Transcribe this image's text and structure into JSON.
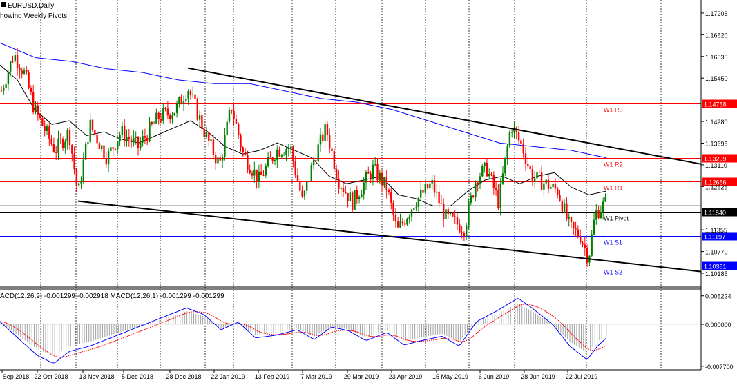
{
  "header": {
    "symbol_label": "EURUSD,Daily",
    "indicator_label": "howing Weekly Pivots."
  },
  "macd_header": "ACD(12,26,9) -0.001299 -0.002918 MACD(12,26,1) -0.001299 -0.001299",
  "chart_data": [
    {
      "type": "candlestick",
      "symbol": "EURUSD",
      "timeframe": "Daily",
      "y_ticks": [
        1.17205,
        1.1662,
        1.16035,
        1.1545,
        1.1428,
        1.13695,
        1.1311,
        1.12525,
        1.11355,
        1.1077,
        1.10185
      ],
      "ylim": [
        1.0985,
        1.1752
      ],
      "x_ticks": [
        "Sep 2018",
        "22 Oct 2018",
        "13 Nov 2018",
        "5 Dec 2018",
        "28 Dec 2018",
        "22 Jan 2019",
        "13 Feb 2019",
        "7 Mar 2019",
        "29 Mar 2019",
        "23 Apr 2019",
        "15 May 2019",
        "6 Jun 2019",
        "28 Jun 2019",
        "22 Jul 2019"
      ],
      "pivot_levels": [
        {
          "name": "W1 R3",
          "value": 1.14758,
          "color": "#ff0000"
        },
        {
          "name": "W1 R2",
          "value": 1.13299,
          "color": "#ff0000"
        },
        {
          "name": "W1 R1",
          "value": 1.12656,
          "color": "#ff0000"
        },
        {
          "name": "W1 Pivot",
          "value": 1.1184,
          "color": "#000000"
        },
        {
          "name": "W1 S1",
          "value": 1.11197,
          "color": "#0000ff"
        },
        {
          "name": "W1 S2",
          "value": 1.10381,
          "color": "#0000ff"
        }
      ],
      "current_price": 1.1203,
      "trendlines": [
        {
          "name": "upper",
          "from": {
            "date": "28 Dec 2018",
            "price": 1.1572
          },
          "to": {
            "date": "22 Jul 2019+",
            "price": 1.1313
          }
        },
        {
          "name": "lower",
          "from": {
            "date": "13 Nov 2018",
            "price": 1.1213
          },
          "to": {
            "date": "22 Jul 2019+",
            "price": 1.1023
          }
        }
      ],
      "ma_fast": [
        1.158,
        1.154,
        1.146,
        1.142,
        1.143,
        1.139,
        1.14,
        1.138,
        1.137,
        1.139,
        1.141,
        1.143,
        1.14,
        1.136,
        1.134,
        1.135,
        1.137,
        1.135,
        1.133,
        1.128,
        1.126,
        1.127,
        1.128,
        1.123,
        1.122,
        1.12,
        1.12,
        1.124,
        1.127,
        1.128,
        1.126,
        1.128,
        1.129,
        1.125,
        1.123,
        1.124
      ],
      "ma_slow": [
        1.164,
        1.16,
        1.159,
        1.157,
        1.156,
        1.154,
        1.153,
        1.153,
        1.151,
        1.149,
        1.148,
        1.146,
        1.143,
        1.14,
        1.137,
        1.136,
        1.135,
        1.133
      ],
      "up_color": "#008000",
      "down_color": "#ff0000"
    },
    {
      "type": "macd",
      "params": "MACD(12,26,9)",
      "y_ticks": [
        0.005224,
        0.0,
        -0.0077
      ],
      "ylim": [
        -0.0081,
        0.0062
      ],
      "signal_color": "#ff0000",
      "macd_color": "#0000ff"
    }
  ]
}
